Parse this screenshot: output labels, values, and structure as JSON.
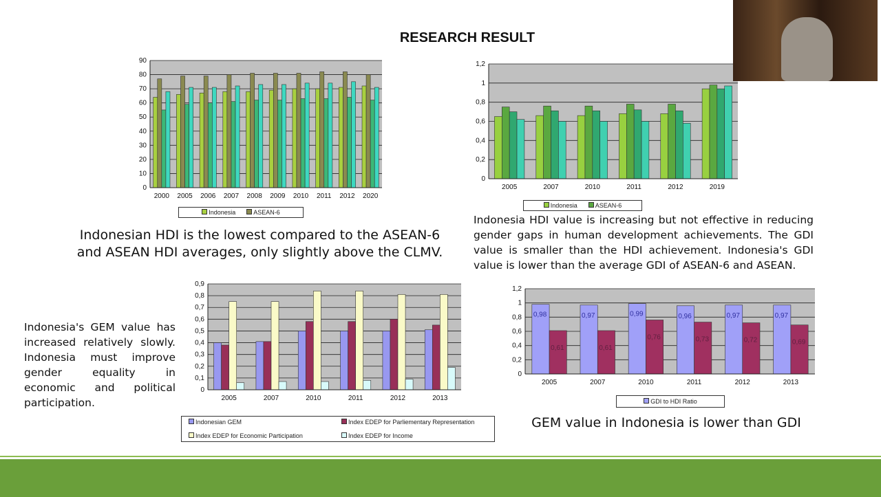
{
  "slide": {
    "title": "RESEARCH RESULT",
    "caption_hdi": "Indonesian HDI is the lowest compared to the ASEAN-6 and ASEAN HDI averages, only slightly above the CLMV.",
    "caption_gdi": "Indonesia HDI value is increasing but not effective in reducing gender gaps in human development achievements. The GDI value is smaller than the HDI achievement. Indonesia's GDI value is lower than the average GDI of ASEAN-6 and ASEAN.",
    "caption_gem": "Indonesia's GEM value has increased relatively slowly. Indonesia must improve gender equality in economic and political participation.",
    "caption_gem_gdi": "GEM value in Indonesia is lower than GDI"
  },
  "chart_data": [
    {
      "type": "bar",
      "id": "hdi",
      "categories": [
        "2000",
        "2005",
        "2006",
        "2007",
        "2008",
        "2009",
        "2010",
        "2011",
        "2012",
        "2020"
      ],
      "ylim": [
        0,
        90
      ],
      "yticks": [
        "0",
        "10",
        "20",
        "30",
        "40",
        "50",
        "60",
        "70",
        "80",
        "90"
      ],
      "grid": true,
      "legend": "bottom",
      "series": [
        {
          "name": "Indonesia",
          "color": "#a8d040",
          "values": [
            64,
            66,
            67,
            68,
            68,
            69,
            70,
            70,
            71,
            72
          ]
        },
        {
          "name": "ASEAN-6",
          "color": "#8a8a50",
          "values": [
            77,
            79,
            79,
            80,
            81,
            81,
            81,
            82,
            82,
            80
          ]
        },
        {
          "color": "#3cb878",
          "values": [
            55,
            59,
            60,
            61,
            62,
            62,
            63,
            63,
            64,
            62
          ]
        },
        {
          "color": "#3ed8c0",
          "values": [
            68,
            71,
            71,
            72,
            73,
            73,
            74,
            74,
            75,
            71
          ]
        }
      ]
    },
    {
      "type": "bar",
      "id": "gdi",
      "categories": [
        "2005",
        "2007",
        "2010",
        "2011",
        "2012",
        "2019"
      ],
      "ylim": [
        0,
        1.2
      ],
      "yticks": [
        "0",
        "0,2",
        "0,4",
        "0,6",
        "0,8",
        "1",
        "1,2"
      ],
      "grid": true,
      "legend": "bottom",
      "series": [
        {
          "name": "Indonesia",
          "color": "#98d040",
          "values": [
            0.65,
            0.66,
            0.66,
            0.68,
            0.68,
            0.94
          ]
        },
        {
          "name": "ASEAN-6",
          "color": "#5aa840",
          "values": [
            0.75,
            0.76,
            0.76,
            0.78,
            0.78,
            0.98
          ]
        },
        {
          "color": "#30a870",
          "values": [
            0.7,
            0.71,
            0.71,
            0.72,
            0.71,
            0.94
          ]
        },
        {
          "color": "#40d0b0",
          "values": [
            0.62,
            0.6,
            0.6,
            0.6,
            0.58,
            0.97
          ]
        }
      ]
    },
    {
      "type": "bar",
      "id": "gem",
      "categories": [
        "2005",
        "2007",
        "2010",
        "2011",
        "2012",
        "2013"
      ],
      "ylim": [
        0,
        0.9
      ],
      "yticks": [
        "0",
        "0,1",
        "0,2",
        "0,3",
        "0,4",
        "0,5",
        "0,6",
        "0,7",
        "0,8",
        "0,9"
      ],
      "grid": true,
      "legend": "bottom",
      "series": [
        {
          "name": "Indonesian GEM",
          "color": "#9898f0",
          "values": [
            0.4,
            0.41,
            0.5,
            0.5,
            0.5,
            0.51
          ]
        },
        {
          "name": "Index EDEP for Parliementary Representation",
          "color": "#983058",
          "values": [
            0.38,
            0.41,
            0.58,
            0.58,
            0.6,
            0.55
          ]
        },
        {
          "name": "Index EDEP for Economic Participation",
          "color": "#fafac8",
          "values": [
            0.75,
            0.75,
            0.84,
            0.84,
            0.81,
            0.81
          ]
        },
        {
          "name": "Index EDEP for Income",
          "color": "#d8fafa",
          "values": [
            0.06,
            0.07,
            0.07,
            0.08,
            0.09,
            0.19
          ]
        }
      ]
    },
    {
      "type": "bar",
      "id": "ratio",
      "categories": [
        "2005",
        "2007",
        "2010",
        "2011",
        "2012",
        "2013"
      ],
      "ylim": [
        0,
        1.2
      ],
      "yticks": [
        "0",
        "0,2",
        "0,4",
        "0,6",
        "0,8",
        "1",
        "1,2"
      ],
      "grid": true,
      "legend": "bottom",
      "series": [
        {
          "name": "GDI to HDI Ratio",
          "color": "#a0a0f8",
          "values": [
            0.98,
            0.97,
            0.99,
            0.96,
            0.97,
            0.97
          ],
          "labels": [
            "0,98",
            "0,97",
            "0,99",
            "0,96",
            "0,97",
            "0,97"
          ]
        },
        {
          "color": "#a03060",
          "values": [
            0.61,
            0.61,
            0.76,
            0.73,
            0.72,
            0.69
          ],
          "labels": [
            "0,61",
            "0,61",
            "0,76",
            "0,73",
            "0,72",
            "0,69"
          ]
        }
      ]
    }
  ]
}
